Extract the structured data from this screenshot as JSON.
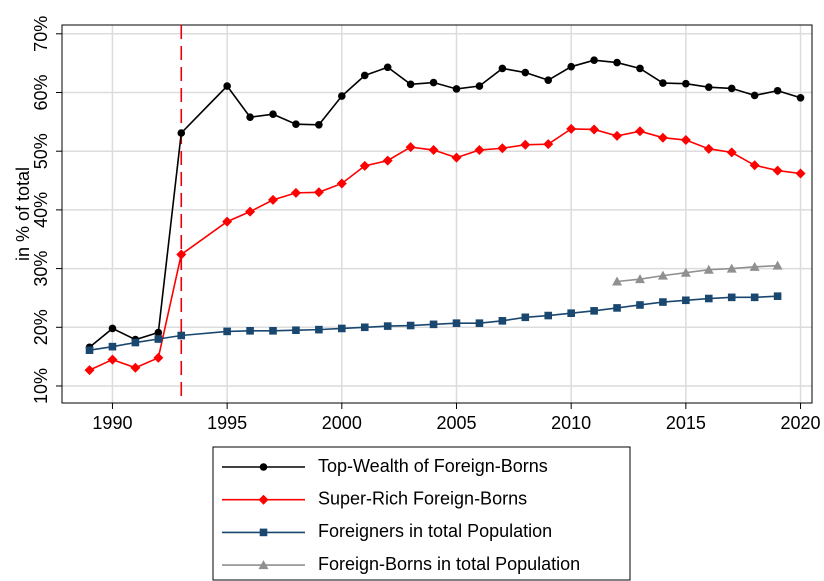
{
  "chart_data": {
    "type": "line",
    "ylabel": "in % of total",
    "xlim": [
      1987.8,
      2020.5
    ],
    "ylim": [
      7.1,
      71.5
    ],
    "xticks": [
      1990,
      1995,
      2000,
      2005,
      2010,
      2015,
      2020
    ],
    "yticks": [
      {
        "value": 10,
        "label": "10%"
      },
      {
        "value": 20,
        "label": "20%"
      },
      {
        "value": 30,
        "label": "30%"
      },
      {
        "value": 40,
        "label": "40%"
      },
      {
        "value": 50,
        "label": "50%"
      },
      {
        "value": 60,
        "label": "60%"
      },
      {
        "value": 70,
        "label": "70%"
      }
    ],
    "grid": true,
    "vline": {
      "x": 1993,
      "color": "#e8000b"
    },
    "legend": "bottom",
    "series": [
      {
        "name": "Top-Wealth of Foreign-Borns",
        "color": "#000000",
        "marker": "circle",
        "x": [
          1989,
          1990,
          1991,
          1992,
          1993,
          1995,
          1996,
          1997,
          1998,
          1999,
          2000,
          2001,
          2002,
          2003,
          2004,
          2005,
          2006,
          2007,
          2008,
          2009,
          2010,
          2011,
          2012,
          2013,
          2014,
          2015,
          2016,
          2017,
          2018,
          2019,
          2020
        ],
        "values": [
          16.6,
          19.8,
          17.9,
          19.1,
          53.1,
          61.1,
          55.8,
          56.3,
          54.6,
          54.5,
          59.4,
          62.9,
          64.3,
          61.4,
          61.7,
          60.6,
          61.1,
          64.1,
          63.4,
          62.1,
          64.4,
          65.5,
          65.1,
          64.1,
          61.6,
          61.5,
          60.9,
          60.7,
          59.5,
          60.3,
          59.1
        ]
      },
      {
        "name": "Super-Rich Foreign-Borns",
        "color": "#ff0000",
        "marker": "diamond",
        "x": [
          1989,
          1990,
          1991,
          1992,
          1993,
          1995,
          1996,
          1997,
          1998,
          1999,
          2000,
          2001,
          2002,
          2003,
          2004,
          2005,
          2006,
          2007,
          2008,
          2009,
          2010,
          2011,
          2012,
          2013,
          2014,
          2015,
          2016,
          2017,
          2018,
          2019,
          2020
        ],
        "values": [
          12.7,
          14.5,
          13.1,
          14.8,
          32.4,
          38.0,
          39.7,
          41.7,
          42.9,
          43.0,
          44.5,
          47.5,
          48.4,
          50.7,
          50.2,
          48.9,
          50.2,
          50.5,
          51.1,
          51.2,
          53.8,
          53.7,
          52.6,
          53.4,
          52.3,
          51.9,
          50.4,
          49.8,
          47.6,
          46.7,
          46.2
        ]
      },
      {
        "name": "Foreigners in total Population",
        "color": "#1a476f",
        "marker": "square",
        "x": [
          1989,
          1990,
          1991,
          1992,
          1993,
          1995,
          1996,
          1997,
          1998,
          1999,
          2000,
          2001,
          2002,
          2003,
          2004,
          2005,
          2006,
          2007,
          2008,
          2009,
          2010,
          2011,
          2012,
          2013,
          2014,
          2015,
          2016,
          2017,
          2018,
          2019
        ],
        "values": [
          16.1,
          16.7,
          17.4,
          18.0,
          18.6,
          19.3,
          19.4,
          19.4,
          19.5,
          19.6,
          19.8,
          20.0,
          20.2,
          20.3,
          20.5,
          20.7,
          20.7,
          21.1,
          21.7,
          22.0,
          22.4,
          22.8,
          23.3,
          23.8,
          24.3,
          24.6,
          24.9,
          25.1,
          25.1,
          25.3
        ]
      },
      {
        "name": "Foreign-Borns in total Population",
        "color": "#909090",
        "marker": "triangle",
        "x": [
          2012,
          2013,
          2014,
          2015,
          2016,
          2017,
          2018,
          2019
        ],
        "values": [
          27.8,
          28.2,
          28.8,
          29.3,
          29.8,
          30.0,
          30.3,
          30.5
        ]
      }
    ]
  }
}
